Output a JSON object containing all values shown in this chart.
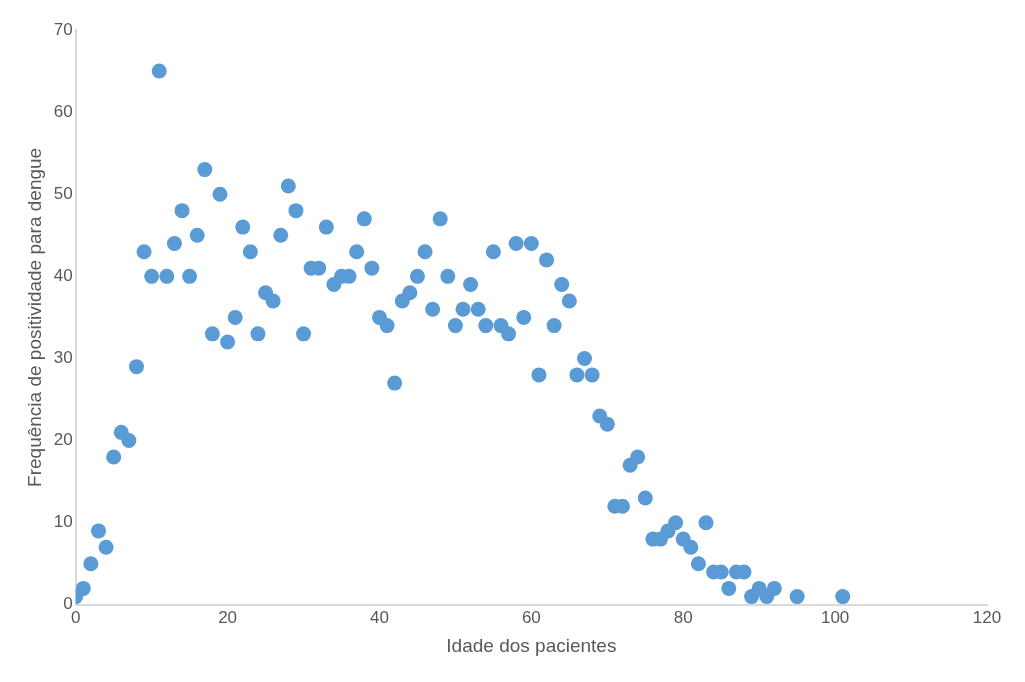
{
  "chart_data": {
    "type": "scatter",
    "xlabel": "Idade dos pacientes",
    "ylabel": "Frequência de positividade para dengue",
    "x": [
      0,
      1,
      2,
      3,
      4,
      5,
      6,
      7,
      8,
      9,
      10,
      11,
      12,
      13,
      14,
      15,
      16,
      17,
      18,
      19,
      20,
      21,
      22,
      23,
      24,
      25,
      26,
      27,
      28,
      29,
      30,
      31,
      32,
      33,
      34,
      35,
      36,
      37,
      38,
      39,
      40,
      41,
      42,
      43,
      44,
      45,
      46,
      47,
      48,
      49,
      50,
      51,
      52,
      53,
      54,
      55,
      56,
      57,
      58,
      59,
      60,
      61,
      62,
      63,
      64,
      65,
      66,
      67,
      68,
      69,
      70,
      71,
      72,
      73,
      74,
      75,
      76,
      77,
      78,
      79,
      80,
      81,
      82,
      83,
      84,
      85,
      86,
      87,
      88,
      89,
      90,
      91,
      92,
      95,
      101
    ],
    "series": [
      {
        "color": "#5b9bd5",
        "values": [
          1,
          2,
          5,
          9,
          7,
          18,
          21,
          20,
          29,
          43,
          40,
          65,
          40,
          44,
          48,
          40,
          45,
          53,
          33,
          50,
          32,
          35,
          46,
          43,
          33,
          38,
          37,
          45,
          51,
          48,
          33,
          41,
          41,
          46,
          39,
          40,
          40,
          43,
          47,
          41,
          35,
          34,
          27,
          37,
          38,
          40,
          43,
          36,
          47,
          40,
          34,
          36,
          39,
          36,
          34,
          43,
          34,
          33,
          44,
          35,
          44,
          28,
          42,
          34,
          39,
          37,
          28,
          30,
          28,
          23,
          22,
          12,
          12,
          17,
          18,
          13,
          8,
          8,
          9,
          10,
          8,
          7,
          5,
          10,
          4,
          4,
          2,
          4,
          4,
          1,
          2,
          1,
          2,
          1,
          1
        ]
      }
    ],
    "xlim": [
      0,
      120
    ],
    "xticks": [
      0,
      20,
      40,
      60,
      80,
      100,
      120
    ],
    "ylim": [
      0,
      70
    ],
    "yticks": [
      0,
      10,
      20,
      30,
      40,
      50,
      60,
      70
    ],
    "grid": false,
    "legend": false,
    "marker": "circle"
  }
}
